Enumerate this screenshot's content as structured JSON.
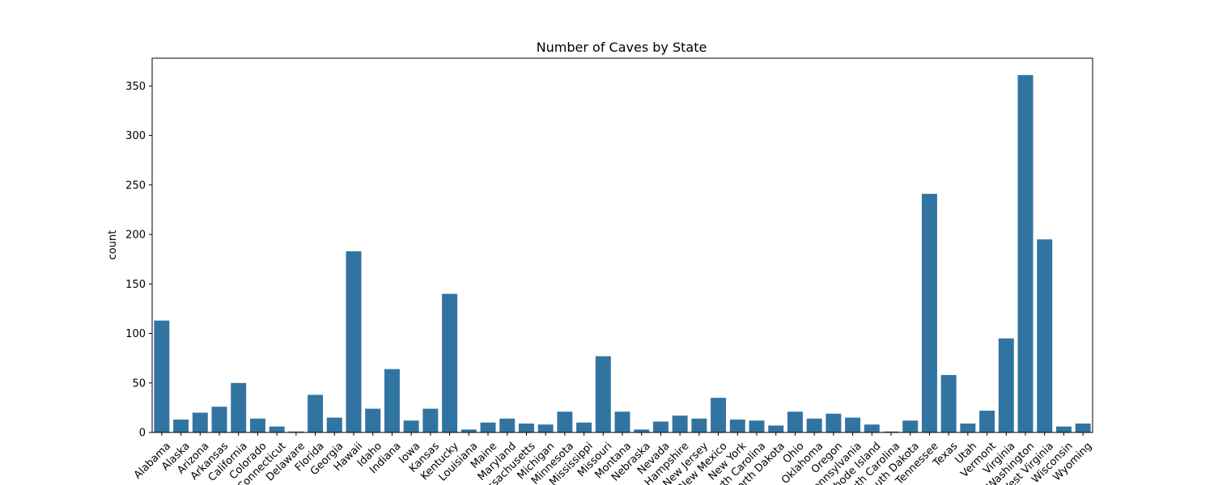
{
  "chart_data": {
    "type": "bar",
    "title": "Number of Caves by State",
    "xlabel": "",
    "ylabel": "count",
    "ylim": [
      0,
      378
    ],
    "yticks": [
      0,
      50,
      100,
      150,
      200,
      250,
      300,
      350
    ],
    "grid": false,
    "color": "#3274a1",
    "categories": [
      "Alabama",
      "Alaska",
      "Arizona",
      "Arkansas",
      "California",
      "Colorado",
      "Connecticut",
      "Delaware",
      "Florida",
      "Georgia",
      "Hawaii",
      "Idaho",
      "Indiana",
      "Iowa",
      "Kansas",
      "Kentucky",
      "Louisiana",
      "Maine",
      "Maryland",
      "Massachusetts",
      "Michigan",
      "Minnesota",
      "Mississippi",
      "Missouri",
      "Montana",
      "Nebraska",
      "Nevada",
      "New Hampshire",
      "New Jersey",
      "New Mexico",
      "New York",
      "North Carolina",
      "North Dakota",
      "Ohio",
      "Oklahoma",
      "Oregon",
      "Pennsylvania",
      "Rhode Island",
      "South Carolina",
      "South Dakota",
      "Tennessee",
      "Texas",
      "Utah",
      "Vermont",
      "Virginia",
      "Washington",
      "West Virginia",
      "Wisconsin",
      "Wyoming"
    ],
    "values": [
      113,
      13,
      20,
      26,
      50,
      14,
      6,
      1,
      38,
      15,
      183,
      24,
      64,
      12,
      24,
      140,
      3,
      10,
      14,
      9,
      8,
      21,
      10,
      77,
      21,
      3,
      11,
      17,
      14,
      35,
      13,
      12,
      7,
      21,
      14,
      19,
      15,
      8,
      1,
      12,
      241,
      58,
      9,
      22,
      95,
      361,
      195,
      6,
      9
    ]
  }
}
